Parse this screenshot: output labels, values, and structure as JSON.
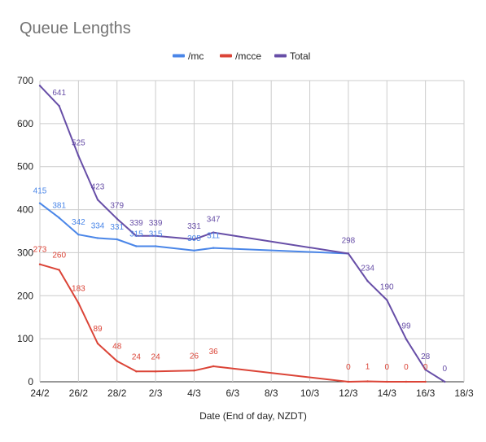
{
  "chart_data": {
    "type": "line",
    "title": "Queue Lengths",
    "xlabel": "Date (End of day, NZDT)",
    "ylabel": "",
    "ylim": [
      0,
      700
    ],
    "yticks": [
      0,
      100,
      200,
      300,
      400,
      500,
      600,
      700
    ],
    "xlim": [
      "2021-02-24",
      "2021-03-18"
    ],
    "xticks": [
      {
        "date": "2021-02-24",
        "label": "24/2"
      },
      {
        "date": "2021-02-26",
        "label": "26/2"
      },
      {
        "date": "2021-02-28",
        "label": "28/2"
      },
      {
        "date": "2021-03-02",
        "label": "2/3"
      },
      {
        "date": "2021-03-04",
        "label": "4/3"
      },
      {
        "date": "2021-03-06",
        "label": "6/3"
      },
      {
        "date": "2021-03-08",
        "label": "8/3"
      },
      {
        "date": "2021-03-10",
        "label": "10/3"
      },
      {
        "date": "2021-03-12",
        "label": "12/3"
      },
      {
        "date": "2021-03-14",
        "label": "14/3"
      },
      {
        "date": "2021-03-16",
        "label": "16/3"
      },
      {
        "date": "2021-03-18",
        "label": "18/3"
      }
    ],
    "grid": true,
    "legend_position": "top-center",
    "series": [
      {
        "name": "/mc",
        "color": "#4a86e8",
        "points": [
          {
            "x": "2021-02-24",
            "y": 415,
            "label": "415"
          },
          {
            "x": "2021-02-25",
            "y": 381,
            "label": "381"
          },
          {
            "x": "2021-02-26",
            "y": 342,
            "label": "342"
          },
          {
            "x": "2021-02-27",
            "y": 334,
            "label": "334"
          },
          {
            "x": "2021-02-28",
            "y": 331,
            "label": "331"
          },
          {
            "x": "2021-03-01",
            "y": 315,
            "label": "315"
          },
          {
            "x": "2021-03-02",
            "y": 315,
            "label": "315"
          },
          {
            "x": "2021-03-04",
            "y": 305,
            "label": "305"
          },
          {
            "x": "2021-03-05",
            "y": 311,
            "label": "311"
          },
          {
            "x": "2021-03-12",
            "y": 298,
            "label": ""
          }
        ]
      },
      {
        "name": "/mcce",
        "color": "#db4437",
        "points": [
          {
            "x": "2021-02-24",
            "y": 273,
            "label": "273"
          },
          {
            "x": "2021-02-25",
            "y": 260,
            "label": "260"
          },
          {
            "x": "2021-02-26",
            "y": 183,
            "label": "183"
          },
          {
            "x": "2021-02-27",
            "y": 89,
            "label": "89"
          },
          {
            "x": "2021-02-28",
            "y": 48,
            "label": "48"
          },
          {
            "x": "2021-03-01",
            "y": 24,
            "label": "24"
          },
          {
            "x": "2021-03-02",
            "y": 24,
            "label": "24"
          },
          {
            "x": "2021-03-04",
            "y": 26,
            "label": "26"
          },
          {
            "x": "2021-03-05",
            "y": 36,
            "label": "36"
          },
          {
            "x": "2021-03-12",
            "y": 0,
            "label": "0"
          },
          {
            "x": "2021-03-13",
            "y": 1,
            "label": "1"
          },
          {
            "x": "2021-03-14",
            "y": 0,
            "label": "0"
          },
          {
            "x": "2021-03-15",
            "y": 0,
            "label": "0"
          },
          {
            "x": "2021-03-16",
            "y": 0,
            "label": "0"
          }
        ]
      },
      {
        "name": "Total",
        "color": "#674ea7",
        "points": [
          {
            "x": "2021-02-24",
            "y": 688,
            "label": ""
          },
          {
            "x": "2021-02-25",
            "y": 641,
            "label": "641"
          },
          {
            "x": "2021-02-26",
            "y": 525,
            "label": "525"
          },
          {
            "x": "2021-02-27",
            "y": 423,
            "label": "423"
          },
          {
            "x": "2021-02-28",
            "y": 379,
            "label": "379"
          },
          {
            "x": "2021-03-01",
            "y": 339,
            "label": "339"
          },
          {
            "x": "2021-03-02",
            "y": 339,
            "label": "339"
          },
          {
            "x": "2021-03-04",
            "y": 331,
            "label": "331"
          },
          {
            "x": "2021-03-05",
            "y": 347,
            "label": "347"
          },
          {
            "x": "2021-03-12",
            "y": 298,
            "label": "298"
          },
          {
            "x": "2021-03-13",
            "y": 234,
            "label": "234"
          },
          {
            "x": "2021-03-14",
            "y": 190,
            "label": "190"
          },
          {
            "x": "2021-03-15",
            "y": 99,
            "label": "99"
          },
          {
            "x": "2021-03-16",
            "y": 28,
            "label": "28"
          },
          {
            "x": "2021-03-17",
            "y": 0,
            "label": "0"
          }
        ]
      }
    ]
  }
}
